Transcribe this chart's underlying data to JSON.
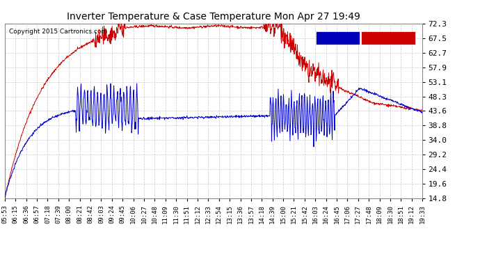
{
  "title": "Inverter Temperature & Case Temperature Mon Apr 27 19:49",
  "copyright": "Copyright 2015 Cartronics.com",
  "background_color": "#ffffff",
  "plot_bg_color": "#ffffff",
  "grid_color": "#c8c8c8",
  "yticks": [
    14.8,
    19.6,
    24.4,
    29.2,
    34.0,
    38.8,
    43.6,
    48.3,
    53.1,
    57.9,
    62.7,
    67.5,
    72.3
  ],
  "ylim": [
    14.8,
    72.3
  ],
  "legend_case_color": "#0000bb",
  "legend_inverter_color": "#cc0000",
  "legend_text_color": "#ffffff",
  "inverter_color": "#cc0000",
  "case_color": "#0000cc",
  "xtick_labels": [
    "05:53",
    "06:15",
    "06:36",
    "06:57",
    "07:18",
    "07:39",
    "08:00",
    "08:21",
    "08:42",
    "09:03",
    "09:24",
    "09:45",
    "10:06",
    "10:27",
    "10:48",
    "11:09",
    "11:30",
    "11:51",
    "12:12",
    "12:33",
    "12:54",
    "13:15",
    "13:36",
    "13:57",
    "14:18",
    "14:39",
    "15:00",
    "15:21",
    "15:42",
    "16:03",
    "16:24",
    "16:45",
    "17:06",
    "17:27",
    "17:48",
    "18:09",
    "18:30",
    "18:51",
    "19:12",
    "19:33"
  ]
}
